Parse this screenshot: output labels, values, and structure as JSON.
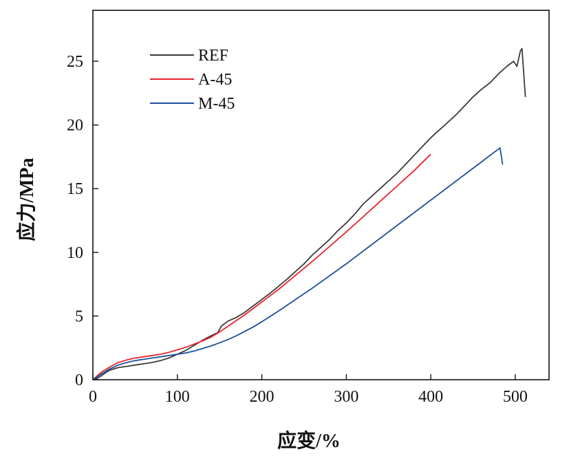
{
  "chart_data": {
    "type": "line",
    "xlabel": "应变/%",
    "ylabel": "应力/MPa",
    "xlim": [
      0,
      540
    ],
    "ylim": [
      0,
      29
    ],
    "xticks": [
      0,
      100,
      200,
      300,
      400,
      500
    ],
    "yticks": [
      0,
      5,
      10,
      15,
      20,
      25
    ],
    "grid": false,
    "legend_position": "top-left",
    "series": [
      {
        "name": "REF",
        "color": "#3a3a3a",
        "points": [
          [
            0,
            0
          ],
          [
            5,
            0.1
          ],
          [
            10,
            0.3
          ],
          [
            15,
            0.55
          ],
          [
            20,
            0.75
          ],
          [
            30,
            0.95
          ],
          [
            40,
            1.05
          ],
          [
            50,
            1.15
          ],
          [
            60,
            1.25
          ],
          [
            70,
            1.35
          ],
          [
            80,
            1.5
          ],
          [
            90,
            1.7
          ],
          [
            100,
            2.0
          ],
          [
            110,
            2.3
          ],
          [
            120,
            2.7
          ],
          [
            130,
            3.1
          ],
          [
            140,
            3.45
          ],
          [
            148,
            3.7
          ],
          [
            152,
            4.2
          ],
          [
            160,
            4.6
          ],
          [
            170,
            4.9
          ],
          [
            180,
            5.3
          ],
          [
            190,
            5.8
          ],
          [
            200,
            6.3
          ],
          [
            210,
            6.8
          ],
          [
            220,
            7.35
          ],
          [
            230,
            7.9
          ],
          [
            240,
            8.5
          ],
          [
            250,
            9.1
          ],
          [
            260,
            9.8
          ],
          [
            270,
            10.4
          ],
          [
            280,
            11.0
          ],
          [
            290,
            11.7
          ],
          [
            300,
            12.3
          ],
          [
            310,
            13.0
          ],
          [
            320,
            13.8
          ],
          [
            330,
            14.4
          ],
          [
            340,
            15.0
          ],
          [
            350,
            15.6
          ],
          [
            360,
            16.2
          ],
          [
            370,
            16.9
          ],
          [
            380,
            17.6
          ],
          [
            390,
            18.3
          ],
          [
            400,
            19.0
          ],
          [
            410,
            19.6
          ],
          [
            420,
            20.2
          ],
          [
            430,
            20.8
          ],
          [
            440,
            21.5
          ],
          [
            450,
            22.2
          ],
          [
            460,
            22.8
          ],
          [
            470,
            23.3
          ],
          [
            480,
            24.0
          ],
          [
            490,
            24.6
          ],
          [
            498,
            25.0
          ],
          [
            502,
            24.6
          ],
          [
            506,
            25.8
          ],
          [
            508,
            26.0
          ],
          [
            512,
            22.2
          ]
        ]
      },
      {
        "name": "A-45",
        "color": "#e8212a",
        "points": [
          [
            0,
            0
          ],
          [
            10,
            0.6
          ],
          [
            20,
            1.0
          ],
          [
            30,
            1.35
          ],
          [
            40,
            1.55
          ],
          [
            50,
            1.7
          ],
          [
            60,
            1.8
          ],
          [
            70,
            1.9
          ],
          [
            80,
            2.0
          ],
          [
            90,
            2.15
          ],
          [
            100,
            2.35
          ],
          [
            110,
            2.55
          ],
          [
            120,
            2.8
          ],
          [
            130,
            3.05
          ],
          [
            140,
            3.35
          ],
          [
            150,
            3.75
          ],
          [
            160,
            4.2
          ],
          [
            170,
            4.65
          ],
          [
            180,
            5.1
          ],
          [
            190,
            5.6
          ],
          [
            200,
            6.1
          ],
          [
            220,
            7.1
          ],
          [
            240,
            8.2
          ],
          [
            260,
            9.3
          ],
          [
            280,
            10.45
          ],
          [
            300,
            11.6
          ],
          [
            320,
            12.8
          ],
          [
            340,
            14.0
          ],
          [
            360,
            15.2
          ],
          [
            380,
            16.4
          ],
          [
            400,
            17.7
          ]
        ]
      },
      {
        "name": "M-45",
        "color": "#1a4f9c",
        "points": [
          [
            0,
            0
          ],
          [
            10,
            0.45
          ],
          [
            20,
            0.85
          ],
          [
            30,
            1.15
          ],
          [
            40,
            1.35
          ],
          [
            50,
            1.5
          ],
          [
            60,
            1.6
          ],
          [
            70,
            1.7
          ],
          [
            80,
            1.8
          ],
          [
            90,
            1.9
          ],
          [
            100,
            2.0
          ],
          [
            110,
            2.1
          ],
          [
            120,
            2.25
          ],
          [
            130,
            2.45
          ],
          [
            140,
            2.65
          ],
          [
            150,
            2.9
          ],
          [
            160,
            3.15
          ],
          [
            170,
            3.45
          ],
          [
            180,
            3.8
          ],
          [
            190,
            4.15
          ],
          [
            200,
            4.55
          ],
          [
            220,
            5.4
          ],
          [
            240,
            6.3
          ],
          [
            260,
            7.2
          ],
          [
            280,
            8.15
          ],
          [
            300,
            9.1
          ],
          [
            320,
            10.1
          ],
          [
            340,
            11.1
          ],
          [
            360,
            12.1
          ],
          [
            380,
            13.1
          ],
          [
            400,
            14.1
          ],
          [
            420,
            15.1
          ],
          [
            440,
            16.1
          ],
          [
            460,
            17.1
          ],
          [
            480,
            18.1
          ],
          [
            482,
            18.2
          ],
          [
            485,
            16.9
          ]
        ]
      }
    ]
  }
}
